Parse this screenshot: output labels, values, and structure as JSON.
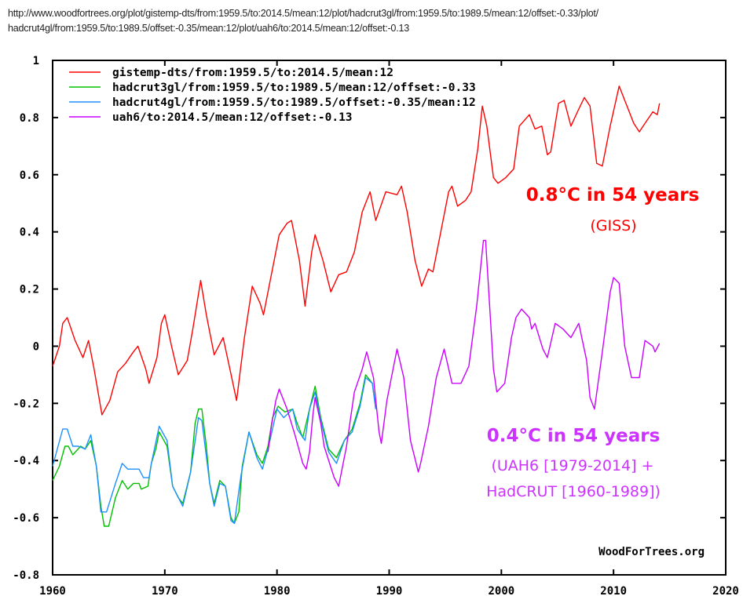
{
  "url_lines": [
    "http://www.woodfortrees.org/plot/gistemp-dts/from:1959.5/to:2014.5/mean:12/plot/hadcrut3gl/from:1959.5/to:1989.5/mean:12/offset:-0.33/plot/",
    "hadcrut4gl/from:1959.5/to:1989.5/offset:-0.35/mean:12/plot/uah6/to:2014.5/mean:12/offset:-0.13"
  ],
  "chart_data": {
    "type": "line",
    "title": "",
    "xlabel": "",
    "ylabel": "",
    "xlim": [
      1960,
      2020
    ],
    "ylim": [
      -0.8,
      1
    ],
    "xticks": [
      "1960",
      "1970",
      "1980",
      "1990",
      "2000",
      "2010",
      "2020"
    ],
    "yticks": [
      "1",
      "0.8",
      "0.6",
      "0.4",
      "0.2",
      "0",
      "-0.2",
      "-0.4",
      "-0.6",
      "-0.8"
    ],
    "grid": false,
    "legend_placement": "top-left",
    "watermark": "WoodForTrees.org",
    "annotations": [
      {
        "text": "0.8°C in 54 years",
        "color": "#ff0000",
        "bold": true
      },
      {
        "text": "(GISS)",
        "color": "#ff0000",
        "bold": false
      },
      {
        "text": "0.4°C in 54 years",
        "color": "#cc33ff",
        "bold": true
      },
      {
        "text": "(UAH6 [1979-2014] +",
        "color": "#cc33ff",
        "bold": false
      },
      {
        "text": "HadCRUT [1960-1989])",
        "color": "#cc33ff",
        "bold": false
      }
    ],
    "series": [
      {
        "name": "gistemp-dts/from:1959.5/to:2014.5/mean:12",
        "color": "#ff0000",
        "points": [
          [
            1960.0,
            -0.07
          ],
          [
            1960.6,
            0.0
          ],
          [
            1960.9,
            0.08
          ],
          [
            1961.3,
            0.1
          ],
          [
            1962.0,
            0.02
          ],
          [
            1962.7,
            -0.04
          ],
          [
            1963.2,
            0.02
          ],
          [
            1963.7,
            -0.08
          ],
          [
            1964.4,
            -0.24
          ],
          [
            1965.1,
            -0.19
          ],
          [
            1965.8,
            -0.09
          ],
          [
            1966.5,
            -0.06
          ],
          [
            1967.2,
            -0.02
          ],
          [
            1967.6,
            0.0
          ],
          [
            1968.3,
            -0.08
          ],
          [
            1968.6,
            -0.13
          ],
          [
            1969.3,
            -0.04
          ],
          [
            1969.7,
            0.08
          ],
          [
            1970.0,
            0.11
          ],
          [
            1970.6,
            0.0
          ],
          [
            1971.2,
            -0.1
          ],
          [
            1972.0,
            -0.05
          ],
          [
            1972.5,
            0.06
          ],
          [
            1973.2,
            0.23
          ],
          [
            1973.7,
            0.11
          ],
          [
            1974.4,
            -0.03
          ],
          [
            1975.2,
            0.03
          ],
          [
            1975.8,
            -0.08
          ],
          [
            1976.4,
            -0.19
          ],
          [
            1977.1,
            0.03
          ],
          [
            1977.8,
            0.21
          ],
          [
            1978.5,
            0.15
          ],
          [
            1978.8,
            0.11
          ],
          [
            1979.5,
            0.25
          ],
          [
            1980.2,
            0.39
          ],
          [
            1980.9,
            0.43
          ],
          [
            1981.3,
            0.44
          ],
          [
            1982.0,
            0.3
          ],
          [
            1982.5,
            0.14
          ],
          [
            1983.1,
            0.33
          ],
          [
            1983.4,
            0.39
          ],
          [
            1984.1,
            0.3
          ],
          [
            1984.8,
            0.19
          ],
          [
            1985.5,
            0.25
          ],
          [
            1986.2,
            0.26
          ],
          [
            1986.9,
            0.33
          ],
          [
            1987.6,
            0.47
          ],
          [
            1988.3,
            0.54
          ],
          [
            1988.8,
            0.44
          ],
          [
            1989.7,
            0.54
          ],
          [
            1990.7,
            0.53
          ],
          [
            1991.1,
            0.56
          ],
          [
            1991.6,
            0.47
          ],
          [
            1992.3,
            0.3
          ],
          [
            1992.9,
            0.21
          ],
          [
            1993.5,
            0.27
          ],
          [
            1993.9,
            0.26
          ],
          [
            1994.6,
            0.4
          ],
          [
            1995.3,
            0.54
          ],
          [
            1995.6,
            0.56
          ],
          [
            1996.1,
            0.49
          ],
          [
            1996.8,
            0.51
          ],
          [
            1997.3,
            0.54
          ],
          [
            1997.9,
            0.69
          ],
          [
            1998.3,
            0.84
          ],
          [
            1998.7,
            0.77
          ],
          [
            1999.3,
            0.59
          ],
          [
            1999.7,
            0.57
          ],
          [
            2000.4,
            0.59
          ],
          [
            2001.1,
            0.62
          ],
          [
            2001.6,
            0.77
          ],
          [
            2002.5,
            0.81
          ],
          [
            2003.0,
            0.76
          ],
          [
            2003.6,
            0.77
          ],
          [
            2004.1,
            0.67
          ],
          [
            2004.4,
            0.68
          ],
          [
            2005.1,
            0.85
          ],
          [
            2005.6,
            0.86
          ],
          [
            2006.2,
            0.77
          ],
          [
            2006.9,
            0.83
          ],
          [
            2007.4,
            0.87
          ],
          [
            2007.9,
            0.84
          ],
          [
            2008.5,
            0.64
          ],
          [
            2009.0,
            0.63
          ],
          [
            2009.7,
            0.77
          ],
          [
            2010.5,
            0.91
          ],
          [
            2011.2,
            0.84
          ],
          [
            2011.8,
            0.78
          ],
          [
            2012.3,
            0.75
          ],
          [
            2012.8,
            0.78
          ],
          [
            2013.5,
            0.82
          ],
          [
            2013.9,
            0.81
          ],
          [
            2014.1,
            0.85
          ]
        ]
      },
      {
        "name": "hadcrut3gl/from:1959.5/to:1989.5/mean:12/offset:-0.33",
        "color": "#00c000",
        "points": [
          [
            1960.0,
            -0.47
          ],
          [
            1960.6,
            -0.42
          ],
          [
            1961.1,
            -0.35
          ],
          [
            1961.4,
            -0.35
          ],
          [
            1961.8,
            -0.38
          ],
          [
            1962.5,
            -0.35
          ],
          [
            1962.9,
            -0.36
          ],
          [
            1963.4,
            -0.33
          ],
          [
            1963.9,
            -0.42
          ],
          [
            1964.3,
            -0.56
          ],
          [
            1964.6,
            -0.63
          ],
          [
            1965.0,
            -0.63
          ],
          [
            1965.6,
            -0.53
          ],
          [
            1966.2,
            -0.47
          ],
          [
            1966.7,
            -0.5
          ],
          [
            1967.2,
            -0.48
          ],
          [
            1967.7,
            -0.48
          ],
          [
            1967.9,
            -0.5
          ],
          [
            1968.5,
            -0.49
          ],
          [
            1968.8,
            -0.41
          ],
          [
            1969.2,
            -0.36
          ],
          [
            1969.5,
            -0.3
          ],
          [
            1970.2,
            -0.35
          ],
          [
            1970.7,
            -0.49
          ],
          [
            1971.2,
            -0.53
          ],
          [
            1971.6,
            -0.55
          ],
          [
            1972.3,
            -0.44
          ],
          [
            1972.7,
            -0.27
          ],
          [
            1973.0,
            -0.22
          ],
          [
            1973.3,
            -0.22
          ],
          [
            1973.7,
            -0.35
          ],
          [
            1974.0,
            -0.48
          ],
          [
            1974.4,
            -0.55
          ],
          [
            1974.9,
            -0.47
          ],
          [
            1975.4,
            -0.49
          ],
          [
            1975.9,
            -0.6
          ],
          [
            1976.2,
            -0.62
          ],
          [
            1976.6,
            -0.58
          ],
          [
            1976.9,
            -0.42
          ],
          [
            1977.5,
            -0.3
          ],
          [
            1978.2,
            -0.38
          ],
          [
            1978.7,
            -0.41
          ],
          [
            1979.2,
            -0.35
          ],
          [
            1979.6,
            -0.25
          ],
          [
            1980.1,
            -0.21
          ],
          [
            1980.7,
            -0.23
          ],
          [
            1981.4,
            -0.22
          ],
          [
            1981.8,
            -0.27
          ],
          [
            1982.3,
            -0.32
          ],
          [
            1982.9,
            -0.22
          ],
          [
            1983.4,
            -0.14
          ],
          [
            1983.9,
            -0.25
          ],
          [
            1984.6,
            -0.36
          ],
          [
            1985.3,
            -0.39
          ],
          [
            1986.0,
            -0.33
          ],
          [
            1986.7,
            -0.29
          ],
          [
            1987.4,
            -0.2
          ],
          [
            1987.9,
            -0.1
          ],
          [
            1988.5,
            -0.13
          ],
          [
            1988.8,
            -0.22
          ]
        ]
      },
      {
        "name": "hadcrut4gl/from:1959.5/to:1989.5/offset:-0.35/mean:12",
        "color": "#1e90ff",
        "points": [
          [
            1960.0,
            -0.42
          ],
          [
            1960.9,
            -0.29
          ],
          [
            1961.3,
            -0.29
          ],
          [
            1961.8,
            -0.35
          ],
          [
            1962.3,
            -0.35
          ],
          [
            1962.9,
            -0.36
          ],
          [
            1963.4,
            -0.31
          ],
          [
            1963.9,
            -0.42
          ],
          [
            1964.3,
            -0.58
          ],
          [
            1964.8,
            -0.58
          ],
          [
            1965.6,
            -0.48
          ],
          [
            1966.2,
            -0.41
          ],
          [
            1966.7,
            -0.43
          ],
          [
            1967.2,
            -0.43
          ],
          [
            1967.7,
            -0.43
          ],
          [
            1968.1,
            -0.46
          ],
          [
            1968.6,
            -0.46
          ],
          [
            1968.8,
            -0.41
          ],
          [
            1969.5,
            -0.28
          ],
          [
            1970.2,
            -0.33
          ],
          [
            1970.7,
            -0.49
          ],
          [
            1971.6,
            -0.56
          ],
          [
            1972.3,
            -0.44
          ],
          [
            1973.0,
            -0.25
          ],
          [
            1973.3,
            -0.26
          ],
          [
            1974.0,
            -0.48
          ],
          [
            1974.4,
            -0.56
          ],
          [
            1974.9,
            -0.48
          ],
          [
            1975.4,
            -0.49
          ],
          [
            1975.9,
            -0.61
          ],
          [
            1976.2,
            -0.62
          ],
          [
            1976.8,
            -0.45
          ],
          [
            1977.5,
            -0.3
          ],
          [
            1978.2,
            -0.39
          ],
          [
            1978.7,
            -0.43
          ],
          [
            1979.2,
            -0.36
          ],
          [
            1980.0,
            -0.22
          ],
          [
            1980.6,
            -0.25
          ],
          [
            1981.4,
            -0.22
          ],
          [
            1981.8,
            -0.29
          ],
          [
            1982.5,
            -0.33
          ],
          [
            1982.9,
            -0.22
          ],
          [
            1983.4,
            -0.16
          ],
          [
            1983.9,
            -0.26
          ],
          [
            1984.6,
            -0.37
          ],
          [
            1985.3,
            -0.41
          ],
          [
            1986.0,
            -0.33
          ],
          [
            1986.7,
            -0.3
          ],
          [
            1987.4,
            -0.21
          ],
          [
            1987.9,
            -0.11
          ],
          [
            1988.5,
            -0.13
          ],
          [
            1988.8,
            -0.22
          ]
        ]
      },
      {
        "name": "uah6/to:2014.5/mean:12/offset:-0.13",
        "color": "#cc00ff",
        "points": [
          [
            1979.2,
            -0.37
          ],
          [
            1979.5,
            -0.28
          ],
          [
            1979.9,
            -0.19
          ],
          [
            1980.2,
            -0.15
          ],
          [
            1980.9,
            -0.22
          ],
          [
            1981.6,
            -0.31
          ],
          [
            1982.3,
            -0.41
          ],
          [
            1982.6,
            -0.43
          ],
          [
            1982.9,
            -0.37
          ],
          [
            1983.2,
            -0.24
          ],
          [
            1983.4,
            -0.18
          ],
          [
            1983.9,
            -0.27
          ],
          [
            1984.2,
            -0.35
          ],
          [
            1985.1,
            -0.46
          ],
          [
            1985.5,
            -0.49
          ],
          [
            1986.2,
            -0.35
          ],
          [
            1986.9,
            -0.16
          ],
          [
            1987.6,
            -0.08
          ],
          [
            1988.0,
            -0.02
          ],
          [
            1988.6,
            -0.11
          ],
          [
            1989.1,
            -0.3
          ],
          [
            1989.3,
            -0.34
          ],
          [
            1989.8,
            -0.19
          ],
          [
            1990.5,
            -0.05
          ],
          [
            1990.7,
            -0.01
          ],
          [
            1991.3,
            -0.11
          ],
          [
            1991.9,
            -0.33
          ],
          [
            1992.6,
            -0.44
          ],
          [
            1992.8,
            -0.41
          ],
          [
            1993.5,
            -0.28
          ],
          [
            1994.2,
            -0.11
          ],
          [
            1994.9,
            -0.01
          ],
          [
            1995.6,
            -0.13
          ],
          [
            1996.4,
            -0.13
          ],
          [
            1997.1,
            -0.07
          ],
          [
            1997.8,
            0.14
          ],
          [
            1998.4,
            0.37
          ],
          [
            1998.6,
            0.37
          ],
          [
            1999.0,
            0.11
          ],
          [
            1999.3,
            -0.08
          ],
          [
            1999.6,
            -0.16
          ],
          [
            2000.3,
            -0.13
          ],
          [
            2000.9,
            0.03
          ],
          [
            2001.3,
            0.1
          ],
          [
            2001.8,
            0.13
          ],
          [
            2002.5,
            0.1
          ],
          [
            2002.7,
            0.06
          ],
          [
            2003.0,
            0.08
          ],
          [
            2003.7,
            -0.01
          ],
          [
            2004.1,
            -0.04
          ],
          [
            2004.8,
            0.08
          ],
          [
            2005.5,
            0.06
          ],
          [
            2006.2,
            0.03
          ],
          [
            2006.9,
            0.08
          ],
          [
            2007.6,
            -0.05
          ],
          [
            2007.9,
            -0.18
          ],
          [
            2008.3,
            -0.22
          ],
          [
            2009.0,
            -0.02
          ],
          [
            2009.7,
            0.19
          ],
          [
            2010.0,
            0.24
          ],
          [
            2010.5,
            0.22
          ],
          [
            2011.0,
            0.0
          ],
          [
            2011.6,
            -0.11
          ],
          [
            2012.3,
            -0.11
          ],
          [
            2012.8,
            0.02
          ],
          [
            2013.5,
            0.0
          ],
          [
            2013.7,
            -0.02
          ],
          [
            2014.1,
            0.01
          ]
        ]
      }
    ]
  }
}
